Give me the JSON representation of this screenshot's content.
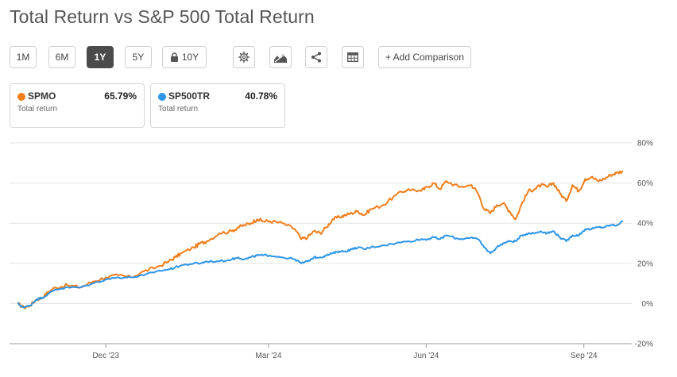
{
  "header": {
    "title": "Total Return vs S&P 500 Total Return"
  },
  "toolbar": {
    "ranges": [
      "1M",
      "6M",
      "1Y",
      "5Y",
      "10Y"
    ],
    "active_range": "1Y",
    "add_comparison_label": "+ Add Comparison",
    "icons": [
      "lock-icon",
      "gear-icon",
      "mountain-chart-icon",
      "share-icon",
      "table-icon"
    ]
  },
  "legend": [
    {
      "symbol": "SPMO",
      "value": "65.79%",
      "sublabel": "Total return",
      "color": "#f07d1a"
    },
    {
      "symbol": "SP500TR",
      "value": "40.78%",
      "sublabel": "Total return",
      "color": "#2d95e8"
    }
  ],
  "chart_data": {
    "type": "line",
    "title": "Total Return vs S&P 500 Total Return",
    "xlabel": "",
    "ylabel": "",
    "ylim": [
      -20,
      80
    ],
    "yticks": [
      "80%",
      "60%",
      "40%",
      "20%",
      "0%",
      "-20%"
    ],
    "ytick_values": [
      80,
      60,
      40,
      20,
      0,
      -20
    ],
    "xlim": [
      0,
      48
    ],
    "xticks": [
      {
        "label": "Dec '23",
        "x": 7
      },
      {
        "label": "Mar '24",
        "x": 19.9
      },
      {
        "label": "Jun '24",
        "x": 32.4
      },
      {
        "label": "Sep '24",
        "x": 44.9
      }
    ],
    "grid": true,
    "series": [
      {
        "name": "SPMO",
        "color": "#f07d1a",
        "x": [
          0,
          0.5,
          1,
          1.5,
          2,
          2.5,
          3,
          4,
          5,
          6,
          7,
          8,
          9,
          10,
          11,
          12,
          12.5,
          13,
          14,
          14.5,
          15,
          16,
          17,
          17.5,
          18,
          18.5,
          19,
          19.5,
          20,
          21,
          22,
          22.5,
          23,
          23.5,
          24,
          24.5,
          25,
          25.5,
          26,
          26.5,
          27,
          27.5,
          28,
          29,
          30,
          31,
          32,
          32.5,
          33,
          33.5,
          34,
          35,
          36,
          36.5,
          37,
          37.5,
          38,
          38.5,
          39,
          39.5,
          40,
          40.5,
          41,
          41.5,
          42,
          42.5,
          43,
          43.5,
          44,
          44.5,
          45,
          45.5,
          46,
          46.5,
          47,
          47.5,
          48
        ],
        "y": [
          0,
          -2,
          -1,
          2,
          3,
          6,
          8,
          9,
          8,
          11,
          13,
          14,
          13,
          16,
          18,
          21,
          23,
          25,
          28,
          30,
          31,
          35,
          36,
          38,
          39,
          40,
          42,
          41,
          41,
          40,
          37,
          32,
          33,
          36,
          35,
          38,
          42,
          43,
          44,
          45,
          46,
          44,
          47,
          49,
          54,
          57,
          56,
          58,
          60,
          57,
          61,
          58,
          59,
          55,
          47,
          45,
          49,
          50,
          46,
          42,
          50,
          56,
          57,
          59,
          58,
          60,
          55,
          51,
          59,
          56,
          62,
          63,
          61,
          62,
          64,
          65,
          66
        ]
      },
      {
        "name": "SP500TR",
        "color": "#2d95e8",
        "x": [
          0,
          0.5,
          1,
          1.5,
          2,
          2.5,
          3,
          4,
          5,
          6,
          7,
          8,
          9,
          10,
          11,
          12,
          12.5,
          13,
          14,
          14.5,
          15,
          16,
          17,
          17.5,
          18,
          18.5,
          19,
          19.5,
          20,
          21,
          22,
          22.5,
          23,
          23.5,
          24,
          24.5,
          25,
          25.5,
          26,
          26.5,
          27,
          27.5,
          28,
          29,
          30,
          31,
          32,
          32.5,
          33,
          33.5,
          34,
          35,
          36,
          36.5,
          37,
          37.5,
          38,
          38.5,
          39,
          39.5,
          40,
          40.5,
          41,
          41.5,
          42,
          42.5,
          43,
          43.5,
          44,
          44.5,
          45,
          45.5,
          46,
          46.5,
          47,
          47.5,
          48
        ],
        "y": [
          0,
          -2,
          -1,
          2,
          3,
          5,
          7,
          8,
          8,
          10,
          12,
          13,
          13,
          14,
          16,
          17,
          18,
          19,
          20,
          20,
          21,
          21,
          22,
          23,
          22,
          23,
          24,
          24,
          24,
          23,
          22,
          20,
          21,
          23,
          23,
          24,
          25,
          26,
          26,
          27,
          28,
          27,
          28,
          29,
          30,
          31,
          32,
          32,
          33,
          32,
          34,
          32,
          33,
          32,
          28,
          25,
          28,
          30,
          31,
          31,
          34,
          35,
          35,
          36,
          35,
          36,
          33,
          31,
          34,
          34,
          37,
          37,
          38,
          38,
          39,
          39,
          41
        ]
      }
    ]
  }
}
